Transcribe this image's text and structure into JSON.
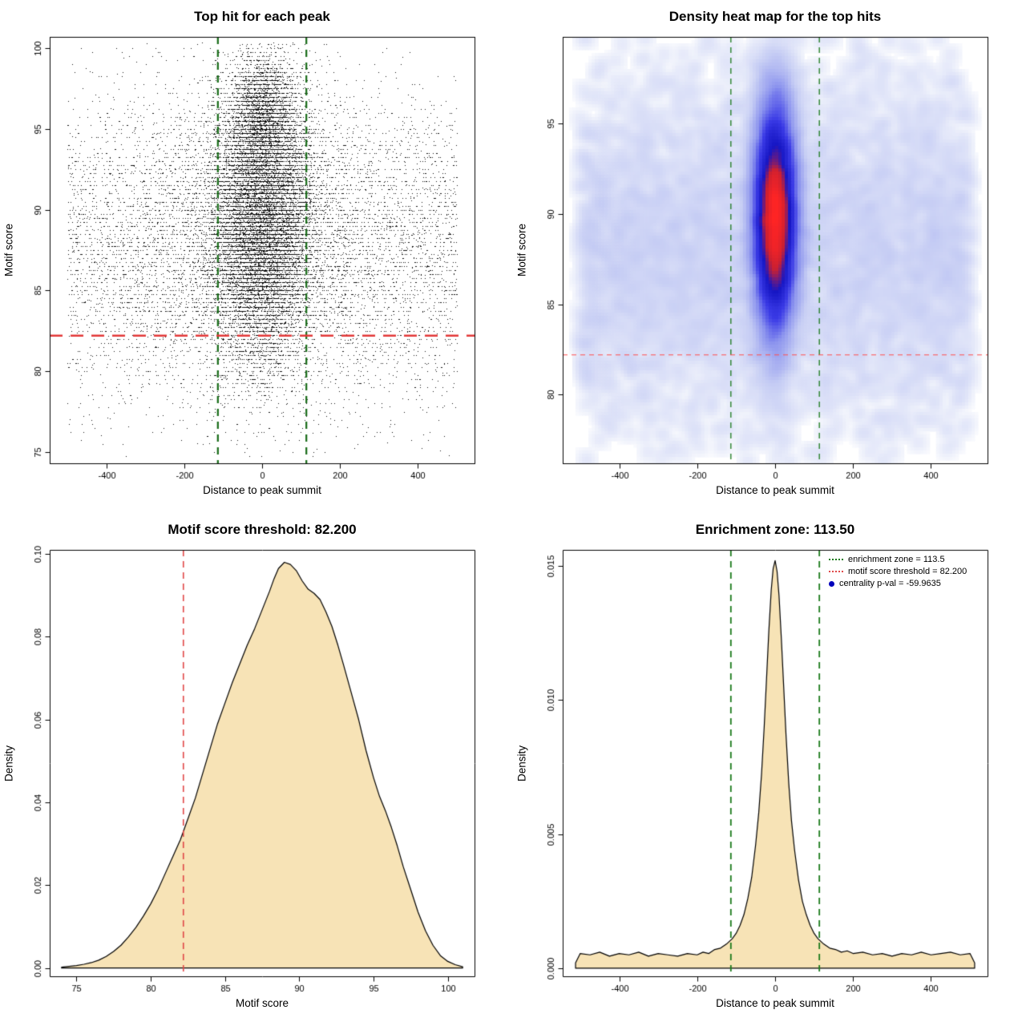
{
  "figure": {
    "background": "#ffffff"
  },
  "chart_data": [
    {
      "type": "scatter",
      "title": "Top hit for each peak",
      "xlabel": "Distance to peak summit",
      "ylabel": "Motif score",
      "xlim": [
        -545,
        545
      ],
      "ylim": [
        74.3,
        100.7
      ],
      "xticks": [
        -400,
        -200,
        0,
        200,
        400
      ],
      "xtick_labels": [
        "-400",
        "-200",
        "0",
        "200",
        "400"
      ],
      "yticks": [
        75,
        80,
        85,
        90,
        95,
        100
      ],
      "ytick_labels": [
        "75",
        "80",
        "85",
        "90",
        "95",
        "100"
      ],
      "point_color": "#000000",
      "enrichment_zone": {
        "x": [
          -113.5,
          113.5
        ],
        "color": "#166b16",
        "line_width": 2.2,
        "dash": [
          9,
          7
        ]
      },
      "score_threshold": {
        "y": 82.2,
        "color": "#e23838",
        "line_width": 2.6,
        "dash": [
          16,
          10
        ]
      },
      "model": {
        "seed": 11,
        "y_quantum": 0.25,
        "background": {
          "n": 6500,
          "y_mean": 87.6,
          "y_sd": 4.9
        },
        "cluster": {
          "n": 14000,
          "x_sd": 58,
          "y_mean": 89.6,
          "y_sd": 4.1
        },
        "wide_cluster": {
          "n": 3500,
          "x_sd": 160,
          "y_mean": 88.5,
          "y_sd": 4.6
        },
        "top_cluster": {
          "n": 3000,
          "x_sd": 34,
          "y_mean": 95.8,
          "y_sd": 1.7
        }
      }
    },
    {
      "type": "heatmap",
      "title": "Density heat map for the top hits",
      "xlabel": "Distance to peak summit",
      "ylabel": "Motif score",
      "xlim": [
        -545,
        545
      ],
      "ylim": [
        76.2,
        99.8
      ],
      "xticks": [
        -400,
        -200,
        0,
        200,
        400
      ],
      "xtick_labels": [
        "-400",
        "-200",
        "0",
        "200",
        "400"
      ],
      "yticks": [
        80,
        85,
        90,
        95
      ],
      "ytick_labels": [
        "80",
        "85",
        "90",
        "95"
      ],
      "colormap": [
        [
          0,
          "#ffffff"
        ],
        [
          0.1,
          "#eef1fb"
        ],
        [
          0.3,
          "#c6cdf4"
        ],
        [
          0.5,
          "#8b93ee"
        ],
        [
          0.65,
          "#3a3ae6"
        ],
        [
          0.8,
          "#1616c4"
        ],
        [
          0.9,
          "#cc2030"
        ],
        [
          1,
          "#ff2424"
        ]
      ],
      "enrichment_zone": {
        "x": [
          -113.5,
          113.5
        ],
        "color": "#1a7a1a",
        "line_width": 1.3,
        "dash": [
          7,
          6
        ]
      },
      "score_threshold": {
        "y": 82.2,
        "color": "#ff4d4d",
        "line_width": 1.2,
        "dash": [
          6,
          5
        ]
      },
      "model": {
        "seed": 23,
        "gamma": 0.3,
        "background": {
          "n": 5000,
          "y_mean": 87.8,
          "y_sd": 4.6
        },
        "cluster": {
          "n": 20000,
          "x_sd": 26,
          "y_mean": 89.8,
          "y_sd": 3.2
        }
      }
    },
    {
      "type": "area",
      "title": "Motif score threshold: 82.200",
      "xlabel": "Motif score",
      "ylabel": "Density",
      "xlim": [
        73.2,
        101.8
      ],
      "ylim": [
        -0.002,
        0.101
      ],
      "xticks": [
        75,
        80,
        85,
        90,
        95,
        100
      ],
      "xtick_labels": [
        "75",
        "80",
        "85",
        "90",
        "95",
        "100"
      ],
      "yticks": [
        0,
        0.02,
        0.04,
        0.06,
        0.08,
        0.1
      ],
      "ytick_labels": [
        "0.00",
        "0.02",
        "0.04",
        "0.06",
        "0.08",
        "0.10"
      ],
      "fill": "#f7e3b6",
      "line_color": "#000000",
      "threshold_line": {
        "x": 82.2,
        "color": "#e04848",
        "line_width": 1.6,
        "dash": [
          8,
          6
        ]
      },
      "curve": {
        "x": [
          74,
          75,
          75.5,
          76,
          76.5,
          77,
          77.5,
          78,
          78.5,
          79,
          79.5,
          80,
          80.5,
          81,
          81.5,
          82,
          82.5,
          83,
          83.5,
          84,
          84.5,
          85,
          85.5,
          86,
          86.5,
          87,
          87.5,
          88,
          88.3,
          88.6,
          89,
          89.4,
          89.8,
          90.2,
          90.6,
          91,
          91.4,
          91.8,
          92.2,
          92.6,
          93,
          93.5,
          94,
          94.5,
          95,
          95.4,
          95.8,
          96.2,
          96.6,
          97,
          97.5,
          98,
          98.5,
          99,
          99.5,
          100,
          100.5,
          101
        ],
        "y": [
          0.0002,
          0.0006,
          0.0009,
          0.0013,
          0.0019,
          0.0028,
          0.004,
          0.0055,
          0.0075,
          0.0098,
          0.0125,
          0.0155,
          0.019,
          0.023,
          0.027,
          0.031,
          0.036,
          0.041,
          0.047,
          0.053,
          0.059,
          0.064,
          0.069,
          0.0735,
          0.078,
          0.082,
          0.0865,
          0.091,
          0.094,
          0.0965,
          0.098,
          0.0975,
          0.096,
          0.0935,
          0.0915,
          0.0905,
          0.089,
          0.086,
          0.0825,
          0.078,
          0.073,
          0.0665,
          0.06,
          0.0525,
          0.046,
          0.0415,
          0.038,
          0.034,
          0.0295,
          0.0245,
          0.019,
          0.0135,
          0.009,
          0.0055,
          0.003,
          0.0016,
          0.0008,
          0.0003
        ]
      }
    },
    {
      "type": "area",
      "title": "Enrichment zone: 113.50",
      "xlabel": "Distance to peak summit",
      "ylabel": "Density",
      "xlim": [
        -545,
        545
      ],
      "ylim": [
        -0.0003,
        0.0156
      ],
      "xticks": [
        -400,
        -200,
        0,
        200,
        400
      ],
      "xtick_labels": [
        "-400",
        "-200",
        "0",
        "200",
        "400"
      ],
      "yticks": [
        0,
        0.005,
        0.01,
        0.015
      ],
      "ytick_labels": [
        "0.000",
        "0.005",
        "0.010",
        "0.015"
      ],
      "fill": "#f7e3b6",
      "line_color": "#000000",
      "enrichment_zone": {
        "x": [
          -113.5,
          113.5
        ],
        "color": "#1a7a1a",
        "line_width": 1.8,
        "dash": [
          8,
          6
        ]
      },
      "legend": {
        "items": [
          {
            "label": "enrichment zone = 113.5",
            "glyph": "dotted-line",
            "color": "#1a7a1a"
          },
          {
            "label": "motif score threshold = 82.200",
            "glyph": "dotted-line",
            "color": "#e04848"
          },
          {
            "label": "centrality p-val = -59.9635",
            "glyph": "point",
            "color": "#0000bb"
          }
        ]
      },
      "curve": {
        "x": [
          -512,
          -500,
          -475,
          -450,
          -425,
          -400,
          -375,
          -350,
          -325,
          -300,
          -275,
          -250,
          -225,
          -200,
          -185,
          -170,
          -155,
          -140,
          -125,
          -110,
          -100,
          -90,
          -80,
          -70,
          -60,
          -50,
          -42,
          -35,
          -28,
          -22,
          -16,
          -10,
          -5,
          0,
          5,
          10,
          16,
          22,
          28,
          35,
          42,
          50,
          60,
          70,
          80,
          90,
          100,
          110,
          125,
          140,
          155,
          170,
          185,
          200,
          225,
          250,
          275,
          300,
          325,
          350,
          375,
          400,
          425,
          450,
          475,
          500,
          512
        ],
        "y": [
          0.0002,
          0.00055,
          0.0005,
          0.0006,
          0.00045,
          0.00055,
          0.0005,
          0.0006,
          0.00045,
          0.00055,
          0.0005,
          0.00045,
          0.00055,
          0.0005,
          0.0006,
          0.00055,
          0.0007,
          0.00075,
          0.0009,
          0.0011,
          0.0013,
          0.0016,
          0.002,
          0.0026,
          0.0034,
          0.0046,
          0.0058,
          0.0072,
          0.009,
          0.0108,
          0.0126,
          0.0141,
          0.0149,
          0.0152,
          0.0148,
          0.0139,
          0.0123,
          0.0105,
          0.0087,
          0.0069,
          0.0055,
          0.0044,
          0.0033,
          0.0025,
          0.002,
          0.0016,
          0.0013,
          0.0011,
          0.0009,
          0.00075,
          0.0007,
          0.0006,
          0.00065,
          0.00055,
          0.0006,
          0.0005,
          0.00055,
          0.00045,
          0.00055,
          0.0005,
          0.0006,
          0.0005,
          0.00055,
          0.0006,
          0.0005,
          0.00055,
          0.0002
        ]
      }
    }
  ]
}
